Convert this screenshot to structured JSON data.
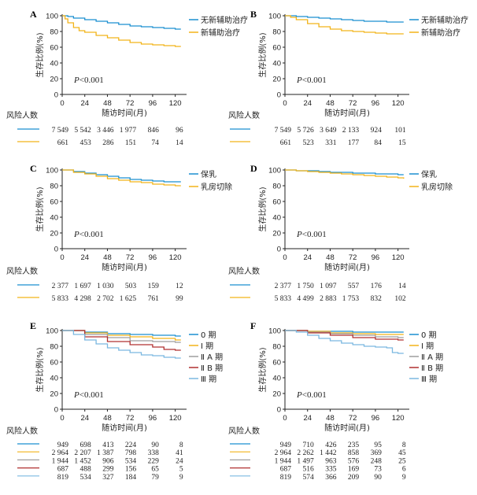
{
  "colors": {
    "blue": "#1a8fd0",
    "orange": "#f2b319",
    "gray": "#9e9e9e",
    "red": "#b03030",
    "green": "#2e8b57",
    "light_blue": "#7ab8e0"
  },
  "chart_data": [
    {
      "panel": "A",
      "type": "line",
      "ylabel": "生存比例(%)",
      "xlabel": "随访时间(月)",
      "xlim": [
        0,
        132
      ],
      "ylim": [
        0,
        100
      ],
      "xticks": [
        0,
        24,
        48,
        72,
        96,
        120
      ],
      "yticks": [
        0,
        20,
        40,
        60,
        80,
        100
      ],
      "pvalue": "P<0.001",
      "legend_position": "right",
      "risk_title": "风险人数",
      "series": [
        {
          "name": "无新辅助治疗",
          "color": "#1a8fd0",
          "x": [
            0,
            6,
            12,
            24,
            36,
            48,
            60,
            72,
            84,
            96,
            108,
            120,
            126
          ],
          "y": [
            100,
            99,
            97,
            95,
            93,
            91,
            89,
            87,
            86,
            85,
            84,
            83,
            83
          ],
          "at_risk": [
            "7 549",
            "5 542",
            "3 446",
            "1 977",
            "846",
            "96"
          ]
        },
        {
          "name": "新辅助治疗",
          "color": "#f2b319",
          "x": [
            0,
            3,
            6,
            12,
            18,
            24,
            36,
            48,
            60,
            72,
            84,
            96,
            108,
            120,
            126
          ],
          "y": [
            100,
            96,
            91,
            85,
            81,
            79,
            75,
            72,
            69,
            66,
            64,
            63,
            62,
            61,
            61
          ],
          "at_risk": [
            "661",
            "453",
            "286",
            "151",
            "74",
            "14"
          ]
        }
      ]
    },
    {
      "panel": "B",
      "type": "line",
      "ylabel": "生存比例(%)",
      "xlabel": "随访时间(月)",
      "xlim": [
        0,
        132
      ],
      "ylim": [
        0,
        100
      ],
      "xticks": [
        0,
        24,
        48,
        72,
        96,
        120
      ],
      "yticks": [
        0,
        20,
        40,
        60,
        80,
        100
      ],
      "pvalue": "P<0.001",
      "legend_position": "right",
      "risk_title": "风险人数",
      "series": [
        {
          "name": "无新辅助治疗",
          "color": "#1a8fd0",
          "x": [
            0,
            12,
            24,
            36,
            48,
            60,
            72,
            84,
            96,
            108,
            120,
            126
          ],
          "y": [
            100,
            99,
            98,
            97,
            96,
            95,
            94,
            93,
            93,
            92,
            92,
            92
          ],
          "at_risk": [
            "7 549",
            "5 726",
            "3 649",
            "2 133",
            "924",
            "101"
          ]
        },
        {
          "name": "新辅助治疗",
          "color": "#f2b319",
          "x": [
            0,
            6,
            12,
            24,
            36,
            48,
            60,
            72,
            84,
            96,
            108,
            120,
            126
          ],
          "y": [
            100,
            98,
            95,
            90,
            86,
            83,
            81,
            80,
            79,
            78,
            77,
            77,
            77
          ],
          "at_risk": [
            "661",
            "523",
            "331",
            "177",
            "84",
            "15"
          ]
        }
      ]
    },
    {
      "panel": "C",
      "type": "line",
      "ylabel": "生存比例(%)",
      "xlabel": "随访时间(月)",
      "xlim": [
        0,
        132
      ],
      "ylim": [
        0,
        100
      ],
      "xticks": [
        0,
        24,
        48,
        72,
        96,
        120
      ],
      "yticks": [
        0,
        20,
        40,
        60,
        80,
        100
      ],
      "pvalue": "P<0.001",
      "legend_position": "right",
      "risk_title": "风险人数",
      "series": [
        {
          "name": "保乳",
          "color": "#1a8fd0",
          "x": [
            0,
            12,
            24,
            36,
            48,
            60,
            72,
            84,
            96,
            108,
            120,
            126
          ],
          "y": [
            100,
            98,
            96,
            94,
            92,
            90,
            88,
            87,
            86,
            85,
            85,
            85
          ],
          "at_risk": [
            "2 377",
            "1 697",
            "1 030",
            "503",
            "159",
            "12"
          ]
        },
        {
          "name": "乳房切除",
          "color": "#f2b319",
          "x": [
            0,
            12,
            24,
            36,
            48,
            60,
            72,
            84,
            96,
            108,
            120,
            126
          ],
          "y": [
            100,
            97,
            95,
            92,
            89,
            87,
            85,
            84,
            82,
            81,
            80,
            80
          ],
          "at_risk": [
            "5 833",
            "4 298",
            "2 702",
            "1 625",
            "761",
            "99"
          ]
        }
      ]
    },
    {
      "panel": "D",
      "type": "line",
      "ylabel": "生存比例(%)",
      "xlabel": "随访时间(月)",
      "xlim": [
        0,
        132
      ],
      "ylim": [
        0,
        100
      ],
      "xticks": [
        0,
        24,
        48,
        72,
        96,
        120
      ],
      "yticks": [
        0,
        20,
        40,
        60,
        80,
        100
      ],
      "pvalue": "P<0.001",
      "legend_position": "right",
      "risk_title": "风险人数",
      "series": [
        {
          "name": "保乳",
          "color": "#1a8fd0",
          "x": [
            0,
            12,
            24,
            36,
            48,
            60,
            72,
            84,
            96,
            108,
            120,
            126
          ],
          "y": [
            100,
            99,
            99,
            98,
            97,
            97,
            96,
            96,
            95,
            95,
            94,
            94
          ],
          "at_risk": [
            "2 377",
            "1 750",
            "1 097",
            "557",
            "176",
            "14"
          ]
        },
        {
          "name": "乳房切除",
          "color": "#f2b319",
          "x": [
            0,
            12,
            24,
            36,
            48,
            60,
            72,
            84,
            96,
            108,
            120,
            126
          ],
          "y": [
            100,
            99,
            98,
            97,
            96,
            95,
            94,
            93,
            92,
            91,
            90,
            89
          ],
          "at_risk": [
            "5 833",
            "4 499",
            "2 883",
            "1 753",
            "832",
            "102"
          ]
        }
      ]
    },
    {
      "panel": "E",
      "type": "line",
      "ylabel": "生存比例(%)",
      "xlabel": "随访时间(月)",
      "xlim": [
        0,
        132
      ],
      "ylim": [
        0,
        100
      ],
      "xticks": [
        0,
        24,
        48,
        72,
        96,
        120
      ],
      "yticks": [
        0,
        20,
        40,
        60,
        80,
        100
      ],
      "pvalue": "P<0.001",
      "legend_position": "right",
      "risk_title": "风险人数",
      "series": [
        {
          "name": "0 期",
          "color": "#1a8fd0",
          "x": [
            0,
            24,
            48,
            72,
            96,
            120,
            126
          ],
          "y": [
            100,
            98,
            96,
            95,
            94,
            93,
            93
          ],
          "at_risk": [
            "949",
            "698",
            "413",
            "224",
            "90",
            "8"
          ]
        },
        {
          "name": "Ⅰ 期",
          "color": "#f2b319",
          "x": [
            0,
            24,
            48,
            72,
            96,
            120,
            126
          ],
          "y": [
            100,
            97,
            94,
            92,
            90,
            88,
            88
          ],
          "at_risk": [
            "2 964",
            "2 207",
            "1 387",
            "798",
            "338",
            "41"
          ]
        },
        {
          "name": "Ⅱ A 期",
          "color": "#9e9e9e",
          "x": [
            0,
            24,
            48,
            72,
            96,
            120,
            126
          ],
          "y": [
            100,
            95,
            91,
            87,
            86,
            85,
            85
          ],
          "at_risk": [
            "1 944",
            "1 452",
            "906",
            "534",
            "229",
            "24"
          ]
        },
        {
          "name": "Ⅱ B 期",
          "color": "#b03030",
          "x": [
            0,
            24,
            48,
            72,
            96,
            108,
            120,
            126
          ],
          "y": [
            100,
            92,
            86,
            82,
            79,
            76,
            75,
            75
          ],
          "at_risk": [
            "687",
            "488",
            "299",
            "156",
            "65",
            "5"
          ]
        },
        {
          "name": "Ⅲ 期",
          "color": "#7ab8e0",
          "x": [
            0,
            12,
            24,
            36,
            48,
            60,
            72,
            84,
            96,
            108,
            120,
            126
          ],
          "y": [
            100,
            95,
            88,
            83,
            78,
            75,
            72,
            69,
            68,
            66,
            65,
            65
          ],
          "at_risk": [
            "819",
            "534",
            "327",
            "184",
            "79",
            "9"
          ]
        }
      ]
    },
    {
      "panel": "F",
      "type": "line",
      "ylabel": "生存比例(%)",
      "xlabel": "随访时间(月)",
      "xlim": [
        0,
        132
      ],
      "ylim": [
        0,
        100
      ],
      "xticks": [
        0,
        24,
        48,
        72,
        96,
        120
      ],
      "yticks": [
        0,
        20,
        40,
        60,
        80,
        100
      ],
      "pvalue": "P<0.001",
      "legend_position": "right",
      "risk_title": "风险人数",
      "series": [
        {
          "name": "0 期",
          "color": "#1a8fd0",
          "x": [
            0,
            24,
            48,
            72,
            96,
            120,
            126
          ],
          "y": [
            100,
            99,
            99,
            98,
            98,
            98,
            98
          ],
          "at_risk": [
            "949",
            "710",
            "426",
            "235",
            "95",
            "8"
          ]
        },
        {
          "name": "Ⅰ 期",
          "color": "#f2b319",
          "x": [
            0,
            24,
            48,
            72,
            96,
            120,
            126
          ],
          "y": [
            100,
            99,
            97,
            96,
            95,
            95,
            95
          ],
          "at_risk": [
            "2 964",
            "2 262",
            "1 442",
            "858",
            "369",
            "45"
          ]
        },
        {
          "name": "Ⅱ A 期",
          "color": "#9e9e9e",
          "x": [
            0,
            24,
            48,
            72,
            96,
            120,
            126
          ],
          "y": [
            100,
            98,
            96,
            94,
            92,
            91,
            91
          ],
          "at_risk": [
            "1 944",
            "1 497",
            "963",
            "576",
            "248",
            "25"
          ]
        },
        {
          "name": "Ⅱ B 期",
          "color": "#b03030",
          "x": [
            0,
            24,
            48,
            72,
            96,
            120,
            126
          ],
          "y": [
            100,
            97,
            94,
            91,
            89,
            88,
            88
          ],
          "at_risk": [
            "687",
            "516",
            "335",
            "169",
            "73",
            "6"
          ]
        },
        {
          "name": "Ⅲ 期",
          "color": "#7ab8e0",
          "x": [
            0,
            12,
            24,
            36,
            48,
            60,
            72,
            84,
            96,
            108,
            114,
            120,
            126
          ],
          "y": [
            100,
            98,
            94,
            90,
            87,
            84,
            82,
            80,
            79,
            78,
            72,
            71,
            71
          ],
          "at_risk": [
            "819",
            "574",
            "366",
            "209",
            "90",
            "9"
          ]
        }
      ]
    }
  ]
}
